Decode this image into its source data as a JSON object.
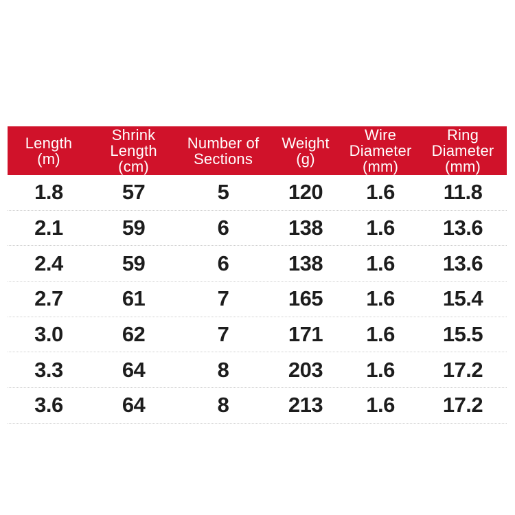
{
  "colors": {
    "header_bg": "#d0122a",
    "header_text": "#ffffff",
    "body_text": "#1d1d1d",
    "separator": "#cfcfcf",
    "page_bg": "#ffffff"
  },
  "table": {
    "column_labels": [
      "Length\n(m)",
      "Shrink\nLength\n(cm)",
      "Number of\nSections",
      "Weight\n(g)",
      "Wire\nDiameter\n(mm)",
      "Ring\nDiameter\n(mm)"
    ],
    "column_widths_percent": [
      16.5,
      17.5,
      18.4,
      14.6,
      15.4,
      17.6
    ],
    "rows": [
      [
        "1.8",
        "57",
        "5",
        "120",
        "1.6",
        "11.8"
      ],
      [
        "2.1",
        "59",
        "6",
        "138",
        "1.6",
        "13.6"
      ],
      [
        "2.4",
        "59",
        "6",
        "138",
        "1.6",
        "13.6"
      ],
      [
        "2.7",
        "61",
        "7",
        "165",
        "1.6",
        "15.4"
      ],
      [
        "3.0",
        "62",
        "7",
        "171",
        "1.6",
        "15.5"
      ],
      [
        "3.3",
        "64",
        "8",
        "203",
        "1.6",
        "17.2"
      ],
      [
        "3.6",
        "64",
        "8",
        "213",
        "1.6",
        "17.2"
      ]
    ]
  },
  "chart_data": {
    "type": "table",
    "title": "",
    "columns": [
      "Length (m)",
      "Shrink Length (cm)",
      "Number of Sections",
      "Weight (g)",
      "Wire Diameter (mm)",
      "Ring Diameter (mm)"
    ],
    "rows": [
      [
        1.8,
        57,
        5,
        120,
        1.6,
        11.8
      ],
      [
        2.1,
        59,
        6,
        138,
        1.6,
        13.6
      ],
      [
        2.4,
        59,
        6,
        138,
        1.6,
        13.6
      ],
      [
        2.7,
        61,
        7,
        165,
        1.6,
        15.4
      ],
      [
        3.0,
        62,
        7,
        171,
        1.6,
        15.5
      ],
      [
        3.3,
        64,
        8,
        203,
        1.6,
        17.2
      ],
      [
        3.6,
        64,
        8,
        213,
        1.6,
        17.2
      ]
    ],
    "layout": {
      "header_fill": "#d0122a",
      "header_text_color": "#ffffff",
      "row_separator": "dotted",
      "grid": "horizontal-only"
    }
  }
}
